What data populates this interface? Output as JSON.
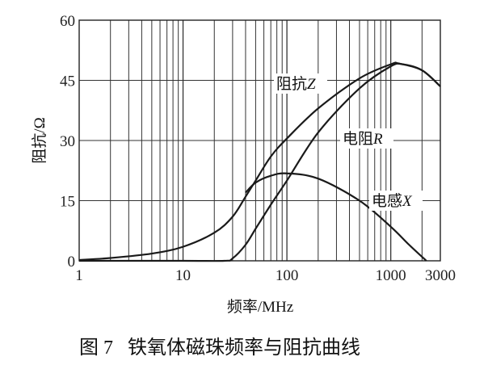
{
  "chart_data": {
    "type": "line",
    "title": "",
    "caption": "图 7   铁氧体磁珠频率与阻抗曲线",
    "xlabel": "频率/MHz",
    "ylabel": "阻抗/Ω",
    "xscale": "log",
    "xlim": [
      1,
      3000
    ],
    "ylim": [
      0,
      60
    ],
    "xticks": [
      1,
      10,
      100,
      1000,
      3000
    ],
    "xtick_labels": [
      "1",
      "10",
      "100",
      "1000",
      "3000"
    ],
    "yticks": [
      0,
      15,
      30,
      45,
      60
    ],
    "ytick_labels": [
      "0",
      "15",
      "30",
      "45",
      "60"
    ],
    "grid": true,
    "line_color": "#1a1a1a",
    "series": [
      {
        "name": "阻抗Z",
        "x": [
          1,
          2,
          5,
          10,
          20,
          30,
          40,
          50,
          70,
          100,
          200,
          500,
          1000,
          1200,
          2000,
          3000
        ],
        "y": [
          0.2,
          0.7,
          1.8,
          3.5,
          7,
          11,
          16,
          20,
          26,
          30.5,
          38,
          45.5,
          49,
          49.2,
          47.5,
          43.5
        ]
      },
      {
        "name": "电阻R",
        "x": [
          1,
          10,
          25,
          30,
          40,
          50,
          70,
          100,
          200,
          500,
          1000,
          1300,
          2000,
          3000
        ],
        "y": [
          0,
          0,
          0,
          0.6,
          4,
          8,
          14,
          20,
          32,
          43,
          48.5,
          49,
          47.5,
          43.5
        ]
      },
      {
        "name": "电感X",
        "x": [
          40,
          50,
          70,
          100,
          200,
          500,
          1000,
          1500,
          2200
        ],
        "y": [
          17,
          19.5,
          21.2,
          21.8,
          20.5,
          15,
          8.5,
          4,
          0
        ]
      }
    ],
    "annotations": [
      {
        "series": "阻抗Z",
        "text_cn": "阻抗",
        "italic": "Z"
      },
      {
        "series": "电阻R",
        "text_cn": "电阻",
        "italic": "R"
      },
      {
        "series": "电感X",
        "text_cn": "电感",
        "italic": "X"
      }
    ]
  }
}
